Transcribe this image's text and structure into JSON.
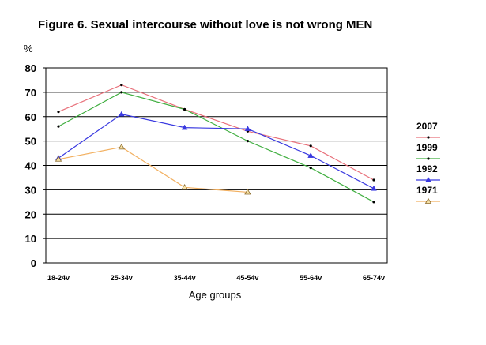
{
  "chart_data": {
    "type": "line",
    "title": "Figure 6. Sexual intercourse without love is not wrong MEN",
    "ylabel": "%",
    "xlabel": "Age groups",
    "categories": [
      "18-24v",
      "25-34v",
      "35-44v",
      "45-54v",
      "55-64v",
      "65-74v"
    ],
    "ylim": [
      0,
      80
    ],
    "yticks": [
      0,
      10,
      20,
      30,
      40,
      50,
      60,
      70,
      80
    ],
    "grid": "horizontal",
    "legend_position": "right",
    "series": [
      {
        "name": "2007",
        "color": "#e8707a",
        "marker": "dot",
        "values": [
          62,
          73,
          63,
          54,
          48,
          34
        ]
      },
      {
        "name": "1999",
        "color": "#3fae3f",
        "marker": "dot",
        "values": [
          56,
          70,
          63,
          50,
          39,
          25
        ]
      },
      {
        "name": "1992",
        "color": "#3a3ae0",
        "marker": "triangle",
        "values": [
          43,
          61,
          55.5,
          55,
          44,
          30.5
        ]
      },
      {
        "name": "1971",
        "color": "#f2b060",
        "marker": "open-triangle",
        "values": [
          42.5,
          47.5,
          31,
          29,
          null,
          null
        ]
      }
    ]
  }
}
